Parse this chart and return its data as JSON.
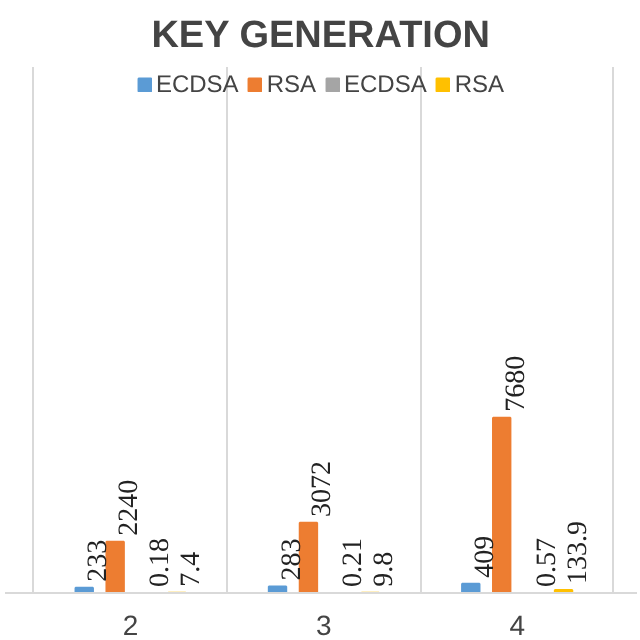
{
  "chart_data": {
    "type": "bar",
    "title": "KEY GENERATION",
    "categories": [
      "2",
      "3",
      "4"
    ],
    "series": [
      {
        "name": "ECDSA",
        "color": "#5b9bd5",
        "values": [
          233,
          283,
          409
        ]
      },
      {
        "name": "RSA",
        "color": "#ed7d31",
        "values": [
          2240,
          3072,
          7680
        ]
      },
      {
        "name": "ECDSA",
        "color": "#a5a5a5",
        "values": [
          0.18,
          0.21,
          0.57
        ]
      },
      {
        "name": "RSA",
        "color": "#ffc000",
        "values": [
          7.4,
          9.8,
          133.9
        ]
      }
    ],
    "data_labels": true,
    "grid": "x",
    "legend": "top"
  }
}
